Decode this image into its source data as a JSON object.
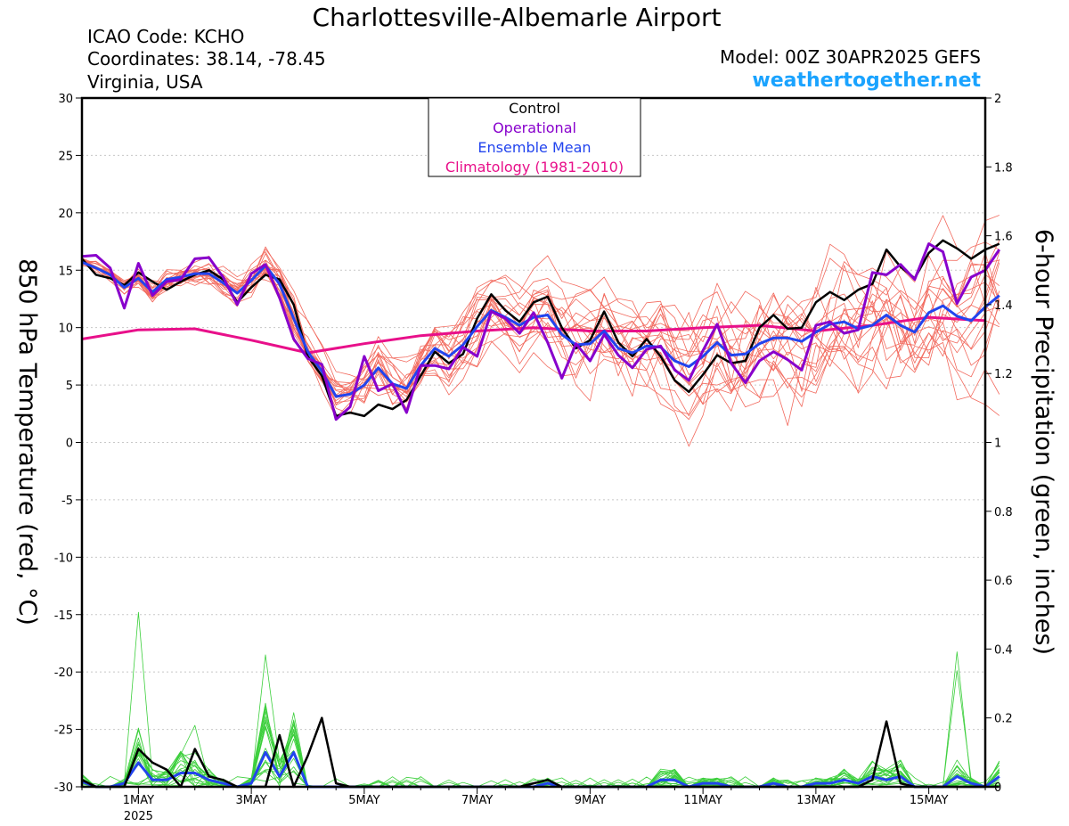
{
  "header": {
    "title": "Charlottesville-Albemarle Airport",
    "icao": "ICAO Code: KCHO",
    "coords": "Coordinates: 38.14, -78.45",
    "region": "Virginia, USA",
    "model": "Model: 00Z 30APR2025 GEFS",
    "site": "weathertogether.net"
  },
  "chart_data": {
    "type": "line",
    "x_unit": "hours since 00Z 30APR2025 (6-hourly)",
    "x_ticks": [
      {
        "hour": 24,
        "label": "1MAY",
        "sub": "2025"
      },
      {
        "hour": 72,
        "label": "3MAY"
      },
      {
        "hour": 120,
        "label": "5MAY"
      },
      {
        "hour": 168,
        "label": "7MAY"
      },
      {
        "hour": 216,
        "label": "9MAY"
      },
      {
        "hour": 264,
        "label": "11MAY"
      },
      {
        "hour": 312,
        "label": "13MAY"
      },
      {
        "hour": 360,
        "label": "15MAY"
      }
    ],
    "xlim": [
      0,
      384
    ],
    "ylabel_left": "850 hPa Temperature (red, °C)",
    "ylabel_right": "6-hour Precipitation (green, inches)",
    "ylim_left": [
      -30,
      30
    ],
    "ylim_right": [
      0,
      2
    ],
    "yticks_left": [
      30,
      25,
      20,
      15,
      10,
      5,
      0,
      -5,
      -10,
      -15,
      -20,
      -25,
      -30
    ],
    "yticks_right": [
      2,
      1.8,
      1.6,
      1.4,
      1.2,
      1,
      0.8,
      0.6,
      0.4,
      0.2,
      0
    ],
    "legend": {
      "placement": "top-center",
      "entries": [
        {
          "label": "Control",
          "color": "#000000"
        },
        {
          "label": "Operational",
          "color": "#8800cc"
        },
        {
          "label": "Ensemble Mean",
          "color": "#2244ee"
        },
        {
          "label": "Climatology (1981-2010)",
          "color": "#e8108a"
        }
      ]
    },
    "colors": {
      "members_temp": "#f26a5e",
      "members_precip": "#3ccf3c",
      "control": "#000000",
      "operational": "#8800cc",
      "mean": "#2244ee",
      "climatology": "#e8108a"
    },
    "series_temp": {
      "control": [
        16.0,
        14.6,
        14.3,
        13.7,
        14.8,
        14.0,
        13.3,
        14.0,
        14.6,
        15.0,
        14.2,
        12.2,
        13.5,
        14.6,
        14.2,
        12.0,
        7.5,
        5.8,
        2.3,
        2.6,
        2.3,
        3.3,
        2.9,
        3.7,
        5.8,
        7.9,
        6.9,
        7.7,
        10.8,
        12.9,
        11.5,
        10.5,
        12.2,
        12.7,
        10.0,
        8.2,
        8.9,
        11.4,
        8.7,
        7.5,
        9.0,
        7.5,
        5.4,
        4.4,
        5.9,
        7.6,
        6.9,
        7.1,
        10.0,
        11.1,
        9.9,
        10.0,
        12.2,
        13.1,
        12.4,
        13.3,
        13.8,
        16.8,
        15.3,
        14.3,
        16.5,
        17.6,
        16.9,
        16.0,
        16.8,
        17.3
      ],
      "operational": [
        16.2,
        16.3,
        15.2,
        11.7,
        15.6,
        12.8,
        14.0,
        14.2,
        16.0,
        16.1,
        14.4,
        12.0,
        14.7,
        15.5,
        12.6,
        9.0,
        7.3,
        6.8,
        2.0,
        3.1,
        7.5,
        4.5,
        5.1,
        2.6,
        6.7,
        6.7,
        6.4,
        8.3,
        7.5,
        11.4,
        10.8,
        9.5,
        11.3,
        8.7,
        5.6,
        8.6,
        7.1,
        9.4,
        7.6,
        6.5,
        8.1,
        8.4,
        6.3,
        5.4,
        8.0,
        10.3,
        6.9,
        5.2,
        7.1,
        7.9,
        7.2,
        6.3,
        10.2,
        10.5,
        9.5,
        9.8,
        14.8,
        14.6,
        15.5,
        14.2,
        17.3,
        16.6,
        12.1,
        14.4,
        15.0,
        16.8
      ],
      "mean": [
        15.7,
        15.2,
        14.6,
        13.5,
        14.3,
        13.1,
        14.2,
        14.4,
        14.7,
        14.7,
        13.9,
        13.0,
        14.1,
        15.4,
        13.8,
        10.8,
        7.9,
        6.2,
        4.0,
        4.2,
        5.0,
        6.5,
        5.1,
        4.7,
        6.7,
        8.2,
        7.5,
        8.5,
        10.1,
        11.5,
        10.9,
        10.2,
        10.9,
        11.1,
        9.4,
        8.5,
        8.6,
        9.7,
        8.2,
        7.8,
        8.4,
        8.3,
        7.1,
        6.6,
        7.5,
        8.7,
        7.6,
        7.7,
        8.6,
        9.1,
        9.1,
        8.8,
        9.6,
        10.3,
        10.5,
        9.9,
        10.2,
        11.1,
        10.2,
        9.6,
        11.3,
        11.9,
        11.0,
        10.6,
        11.8,
        12.8
      ],
      "climatology": [
        [
          0,
          9.0
        ],
        [
          24,
          9.8
        ],
        [
          48,
          9.9
        ],
        [
          72,
          8.9
        ],
        [
          96,
          7.8
        ],
        [
          120,
          8.6
        ],
        [
          144,
          9.3
        ],
        [
          168,
          9.7
        ],
        [
          192,
          10.0
        ],
        [
          216,
          9.7
        ],
        [
          240,
          9.7
        ],
        [
          264,
          10.0
        ],
        [
          288,
          10.2
        ],
        [
          312,
          9.7
        ],
        [
          336,
          10.2
        ],
        [
          360,
          10.9
        ],
        [
          384,
          10.6
        ]
      ]
    },
    "series_precip": {
      "control": [
        0.02,
        0.0,
        0.0,
        0.0,
        0.11,
        0.07,
        0.05,
        0.0,
        0.11,
        0.03,
        0.02,
        0.0,
        0.0,
        0.0,
        0.15,
        0.0,
        0.09,
        0.2,
        0.01,
        0.0,
        0.0,
        0.0,
        0.0,
        0.0,
        0.0,
        0.0,
        0.0,
        0.0,
        0.0,
        0.0,
        0.0,
        0.0,
        0.01,
        0.02,
        0.0,
        0.0,
        0.0,
        0.0,
        0.0,
        0.0,
        0.0,
        0.0,
        0.0,
        0.0,
        0.0,
        0.0,
        0.0,
        0.0,
        0.0,
        0.0,
        0.0,
        0.0,
        0.0,
        0.0,
        0.0,
        0.0,
        0.02,
        0.19,
        0.01,
        0.0,
        0.0,
        0.0,
        0.0,
        0.0,
        0.0,
        0.0
      ],
      "mean": [
        0.015,
        0.0,
        0.0,
        0.01,
        0.07,
        0.02,
        0.02,
        0.04,
        0.04,
        0.02,
        0.01,
        0.0,
        0.01,
        0.1,
        0.03,
        0.1,
        0.0,
        0.0,
        0.0,
        0.0,
        0.0,
        0.0,
        0.0,
        0.0,
        0.0,
        0.0,
        0.0,
        0.0,
        0.0,
        0.0,
        0.0,
        0.0,
        0.0,
        0.01,
        0.0,
        0.0,
        0.0,
        0.0,
        0.0,
        0.0,
        0.0,
        0.02,
        0.02,
        0.0,
        0.01,
        0.01,
        0.0,
        0.0,
        0.0,
        0.01,
        0.0,
        0.0,
        0.01,
        0.01,
        0.02,
        0.01,
        0.03,
        0.02,
        0.03,
        0.0,
        0.0,
        0.0,
        0.03,
        0.01,
        0.0,
        0.03
      ]
    }
  }
}
